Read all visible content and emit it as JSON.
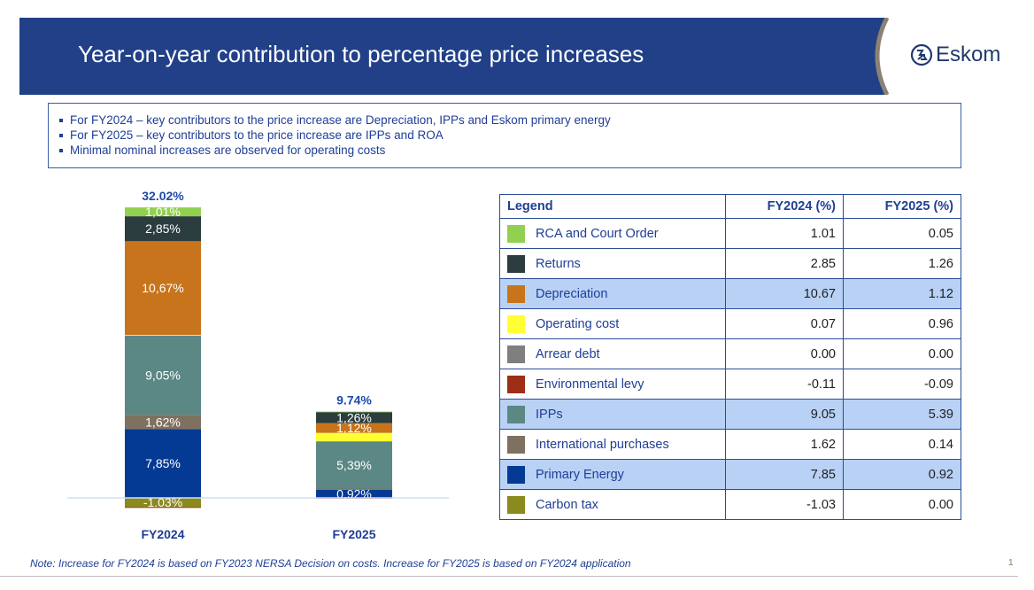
{
  "header": {
    "title": "Year-on-year contribution to percentage price increases",
    "logo_text": "Eskom",
    "logo_icon": "eskom-logo-icon",
    "brand_color": "#214088",
    "arc_color": "#8c8273"
  },
  "bullets": [
    "For FY2024 – key contributors to the price increase are Depreciation, IPPs and Eskom primary energy",
    "For FY2025 – key contributors to the price increase are IPPs and ROA",
    "Minimal nominal increases are observed for operating costs"
  ],
  "chart_data": {
    "type": "bar",
    "stacked": true,
    "title": "",
    "xlabel": "",
    "ylabel": "",
    "categories": [
      "FY2024",
      "FY2025"
    ],
    "totals": [
      "32.02%",
      "9.74%"
    ],
    "series": [
      {
        "name": "Carbon tax",
        "color": "#8b8a1e",
        "values": [
          -1.03,
          0.0
        ],
        "labels": [
          "-1,03%",
          ""
        ]
      },
      {
        "name": "Environmental levy",
        "color": "#9c2f16",
        "values": [
          -0.11,
          -0.09
        ],
        "labels": [
          "",
          ""
        ]
      },
      {
        "name": "Primary Energy",
        "color": "#053a94",
        "values": [
          7.85,
          0.92
        ],
        "labels": [
          "7,85%",
          "0,92%"
        ]
      },
      {
        "name": "International purchases",
        "color": "#7f715f",
        "values": [
          1.62,
          0.14
        ],
        "labels": [
          "1,62%",
          ""
        ]
      },
      {
        "name": "IPPs",
        "color": "#5b8784",
        "values": [
          9.05,
          5.39
        ],
        "labels": [
          "9,05%",
          "5,39%"
        ]
      },
      {
        "name": "Arrear debt",
        "color": "#7f7f7f",
        "values": [
          0.0,
          0.0
        ],
        "labels": [
          "",
          ""
        ]
      },
      {
        "name": "Operating cost",
        "color": "#ffff33",
        "values": [
          0.07,
          0.96
        ],
        "labels": [
          "",
          ""
        ]
      },
      {
        "name": "Depreciation",
        "color": "#c8741c",
        "values": [
          10.67,
          1.12
        ],
        "labels": [
          "10,67%",
          "1,12%"
        ]
      },
      {
        "name": "Returns",
        "color": "#2c3d3f",
        "values": [
          2.85,
          1.26
        ],
        "labels": [
          "2,85%",
          "1,26%"
        ]
      },
      {
        "name": "RCA and Court Order",
        "color": "#92d050",
        "values": [
          1.01,
          0.05
        ],
        "labels": [
          "1,01%",
          ""
        ]
      }
    ],
    "grid": false,
    "legend": "right-table"
  },
  "legend_table": {
    "headers": [
      "Legend",
      "FY2024 (%)",
      "FY2025 (%)"
    ],
    "rows": [
      {
        "label": "RCA and Court Order",
        "color": "#92d050",
        "fy2024": "1.01",
        "fy2025": "0.05",
        "highlight": false
      },
      {
        "label": "Returns",
        "color": "#2c3d3f",
        "fy2024": "2.85",
        "fy2025": "1.26",
        "highlight": false
      },
      {
        "label": "Depreciation",
        "color": "#c8741c",
        "fy2024": "10.67",
        "fy2025": "1.12",
        "highlight": true
      },
      {
        "label": "Operating cost",
        "color": "#ffff33",
        "fy2024": "0.07",
        "fy2025": "0.96",
        "highlight": false
      },
      {
        "label": "Arrear debt",
        "color": "#7f7f7f",
        "fy2024": "0.00",
        "fy2025": "0.00",
        "highlight": false
      },
      {
        "label": "Environmental levy",
        "color": "#9c2f16",
        "fy2024": "-0.11",
        "fy2025": "-0.09",
        "highlight": false
      },
      {
        "label": "IPPs",
        "color": "#5b8784",
        "fy2024": "9.05",
        "fy2025": "5.39",
        "highlight": true
      },
      {
        "label": "International purchases",
        "color": "#7f715f",
        "fy2024": "1.62",
        "fy2025": "0.14",
        "highlight": false
      },
      {
        "label": "Primary Energy",
        "color": "#053a94",
        "fy2024": "7.85",
        "fy2025": "0.92",
        "highlight": true
      },
      {
        "label": "Carbon tax",
        "color": "#8b8a1e",
        "fy2024": "-1.03",
        "fy2025": "0.00",
        "highlight": false
      }
    ]
  },
  "footer": {
    "note": "Note: Increase for FY2024 is based on FY2023 NERSA Decision on costs. Increase for FY2025 is based on FY2024 application",
    "page_number": "1"
  }
}
